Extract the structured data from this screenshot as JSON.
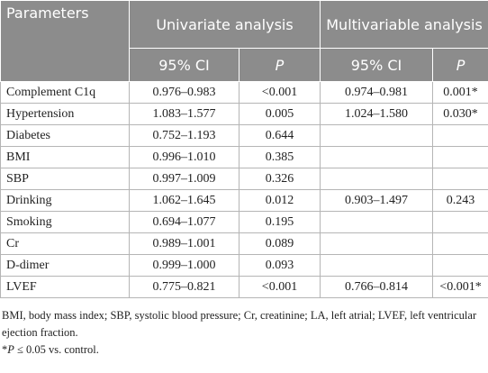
{
  "table": {
    "header": {
      "parameters": "Parameters",
      "univariate": "Univariate analysis",
      "multivariable": "Multivariable analysis",
      "ci": "95% CI",
      "p": "P"
    },
    "rows": [
      [
        "Complement C1q",
        "0.976–0.983",
        "<0.001",
        "0.974–0.981",
        "0.001*"
      ],
      [
        "Hypertension",
        "1.083–1.577",
        "0.005",
        "1.024–1.580",
        "0.030*"
      ],
      [
        "Diabetes",
        "0.752–1.193",
        "0.644",
        null,
        null
      ],
      [
        "BMI",
        "0.996–1.010",
        "0.385",
        null,
        null
      ],
      [
        "SBP",
        "0.997–1.009",
        "0.326",
        null,
        null
      ],
      [
        "Drinking",
        "1.062–1.645",
        "0.012",
        "0.903–1.497",
        "0.243"
      ],
      [
        "Smoking",
        "0.694–1.077",
        "0.195",
        null,
        null
      ],
      [
        "Cr",
        "0.989–1.001",
        "0.089",
        null,
        null
      ],
      [
        "D-dimer",
        "0.999–1.000",
        "0.093",
        null,
        null
      ],
      [
        "LVEF",
        "0.775–0.821",
        "<0.001",
        "0.766–0.814",
        "<0.001*"
      ]
    ]
  },
  "footnotes": {
    "abbreviations": "BMI, body mass index; SBP, systolic blood pressure; Cr, creatinine; LA, left atrial; LVEF, left ventricular ejection fraction.",
    "significance": [
      "*",
      "P",
      " ≤ 0.05 vs. control."
    ]
  }
}
